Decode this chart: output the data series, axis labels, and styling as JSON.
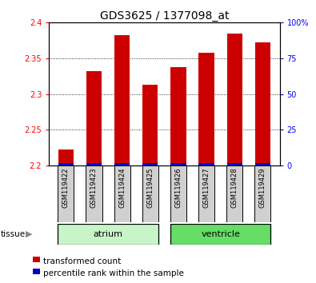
{
  "title": "GDS3625 / 1377098_at",
  "samples": [
    "GSM119422",
    "GSM119423",
    "GSM119424",
    "GSM119425",
    "GSM119426",
    "GSM119427",
    "GSM119428",
    "GSM119429"
  ],
  "red_values": [
    2.222,
    2.332,
    2.383,
    2.313,
    2.338,
    2.358,
    2.385,
    2.372
  ],
  "ymin": 2.2,
  "ymax": 2.4,
  "yticks": [
    2.2,
    2.25,
    2.3,
    2.35,
    2.4
  ],
  "right_yticks": [
    0,
    25,
    50,
    75,
    100
  ],
  "tissue_groups": [
    {
      "label": "atrium",
      "samples": [
        0,
        1,
        2,
        3
      ],
      "color": "#c8f5c8"
    },
    {
      "label": "ventricle",
      "samples": [
        4,
        5,
        6,
        7
      ],
      "color": "#66dd66"
    }
  ],
  "bar_width": 0.55,
  "red_color": "#cc0000",
  "blue_color": "#0000cc",
  "gray_box_color": "#d0d0d0",
  "title_fontsize": 10,
  "tick_fontsize": 7,
  "label_fontsize": 8,
  "sample_fontsize": 6,
  "legend_fontsize": 7.5
}
